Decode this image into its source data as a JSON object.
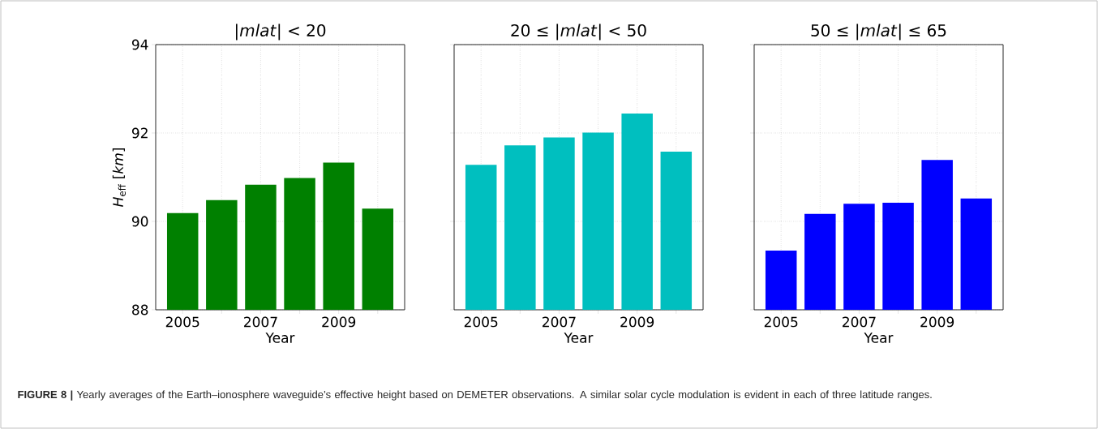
{
  "chart_data": [
    {
      "type": "bar",
      "title": "|*mlat*| < 20",
      "xlabel": "Year",
      "ylabel": "*H*$_{eff}$ [*km*]",
      "x": [
        2005,
        2006,
        2007,
        2008,
        2009,
        2010
      ],
      "values": [
        90.19,
        90.48,
        90.83,
        90.98,
        91.33,
        90.29
      ],
      "color": "#008000",
      "xlim": [
        2004.31,
        2010.69
      ],
      "ylim": [
        88,
        94
      ],
      "xticks": [
        2005,
        {
          "value": 2006,
          "label": null
        },
        2007,
        {
          "value": 2008,
          "label": null
        },
        2009,
        {
          "value": 2010,
          "label": null
        }
      ],
      "yticks": [
        88,
        90,
        92,
        94
      ],
      "grid": true,
      "annotations": [
        "**FIGURE 8 |** Yearly averages of the Earth–ionosphere waveguide’s effective height based on DEMETER observations. A similar solar cycle modulation is evident in each of three latitude ranges."
      ]
    },
    {
      "type": "bar",
      "title": "20 ≤ |*mlat*| < 50",
      "xlabel": "Year",
      "x": [
        2005,
        2006,
        2007,
        2008,
        2009,
        2010
      ],
      "values": [
        91.28,
        91.72,
        91.9,
        92.01,
        92.44,
        91.58
      ],
      "color": "#00bfbf",
      "xlim": [
        2004.31,
        2010.69
      ],
      "ylim": [
        88,
        94
      ],
      "xticks": [
        2005,
        {
          "value": 2006,
          "label": null
        },
        2007,
        {
          "value": 2008,
          "label": null
        },
        2009,
        {
          "value": 2010,
          "label": null
        }
      ],
      "yticks": [
        88,
        90,
        92,
        94
      ],
      "grid": true,
      "tick_labels": "x"
    },
    {
      "type": "bar",
      "title": "50 ≤ |*mlat*| ≤ 65",
      "xlabel": "Year",
      "x": [
        2005,
        2006,
        2007,
        2008,
        2009,
        2010
      ],
      "values": [
        89.34,
        90.17,
        90.4,
        90.42,
        91.39,
        90.52
      ],
      "color": "#0000ff",
      "xlim": [
        2004.31,
        2010.69
      ],
      "ylim": [
        88,
        94
      ],
      "xticks": [
        2005,
        {
          "value": 2006,
          "label": null
        },
        2007,
        {
          "value": 2008,
          "label": null
        },
        2009,
        {
          "value": 2010,
          "label": null
        }
      ],
      "yticks": [
        88,
        90,
        92,
        94
      ],
      "grid": true,
      "tick_labels": "x"
    }
  ]
}
